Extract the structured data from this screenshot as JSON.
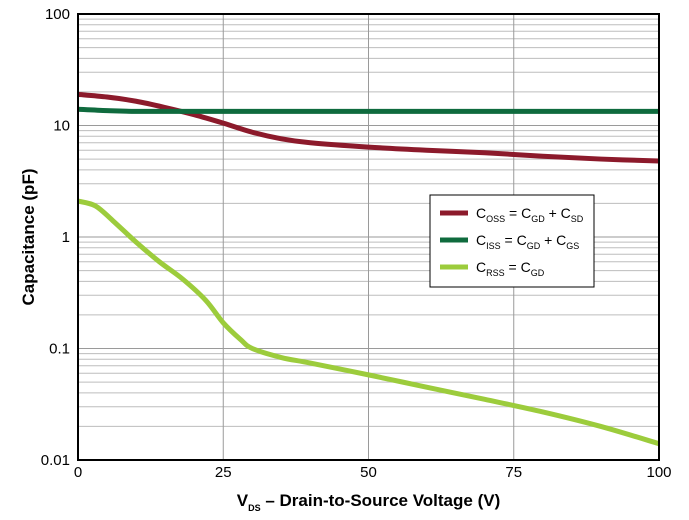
{
  "chart_data": {
    "type": "line",
    "title": "",
    "xlabel": {
      "main": "V",
      "sub": "DS",
      "rest": " – Drain-to-Source Voltage (V)"
    },
    "ylabel": "Capacitance (pF)",
    "xlim": [
      0,
      100
    ],
    "ylim": [
      0.01,
      100
    ],
    "yscale": "log",
    "grid": true,
    "legend_position": "center-right",
    "x_ticks": [
      "0",
      "25",
      "50",
      "75",
      "100"
    ],
    "y_ticks": [
      "0.01",
      "0.1",
      "1",
      "10",
      "100"
    ],
    "series": [
      {
        "name": "COSS = CGD + CSD",
        "legend": [
          {
            "t": "C"
          },
          {
            "t": "OSS",
            "sub": true
          },
          {
            "t": " = C"
          },
          {
            "t": "GD",
            "sub": true
          },
          {
            "t": " + C"
          },
          {
            "t": "SD",
            "sub": true
          }
        ],
        "color": "#8c1a2b",
        "x": [
          0,
          5,
          10,
          15,
          20,
          25,
          30,
          35,
          40,
          50,
          60,
          70,
          80,
          90,
          100
        ],
        "y": [
          19,
          18,
          16.5,
          14.5,
          12.5,
          10.5,
          8.7,
          7.6,
          7,
          6.4,
          6,
          5.7,
          5.3,
          5,
          4.8
        ]
      },
      {
        "name": "CISS = CGD + CGS",
        "legend": [
          {
            "t": "C"
          },
          {
            "t": "ISS",
            "sub": true
          },
          {
            "t": " = C"
          },
          {
            "t": "GD",
            "sub": true
          },
          {
            "t": " + C"
          },
          {
            "t": "GS",
            "sub": true
          }
        ],
        "color": "#0f6b3e",
        "x": [
          0,
          5,
          10,
          20,
          30,
          50,
          70,
          100
        ],
        "y": [
          14,
          13.6,
          13.4,
          13.4,
          13.4,
          13.4,
          13.4,
          13.4
        ]
      },
      {
        "name": "CRSS = CGD",
        "legend": [
          {
            "t": "C"
          },
          {
            "t": "RSS",
            "sub": true
          },
          {
            "t": " = C"
          },
          {
            "t": "GD",
            "sub": true
          }
        ],
        "color": "#9ccc3c",
        "x": [
          0,
          3,
          6,
          10,
          14,
          18,
          22,
          25,
          28,
          30,
          35,
          40,
          50,
          60,
          70,
          80,
          90,
          100
        ],
        "y": [
          2.1,
          1.9,
          1.4,
          0.9,
          0.6,
          0.42,
          0.27,
          0.17,
          0.12,
          0.1,
          0.083,
          0.074,
          0.058,
          0.045,
          0.035,
          0.027,
          0.02,
          0.014
        ]
      }
    ]
  }
}
